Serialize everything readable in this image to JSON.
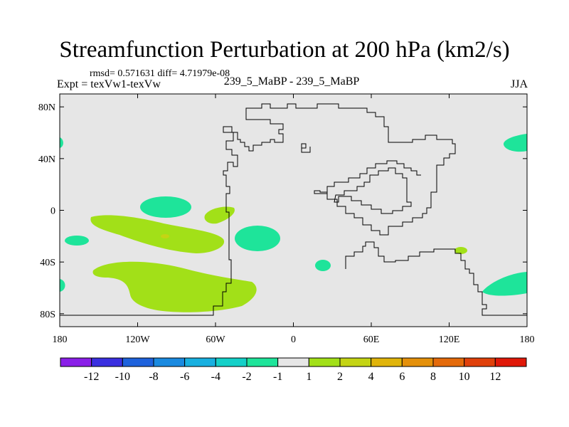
{
  "title": "Streamfunction Perturbation at 200 hPa (km2/s)",
  "stats": "rmsd= 0.571631 diff= 4.71979e-08",
  "experiment": "Expt = texVw1-texVw",
  "case": "239_5_MaBP - 239_5_MaBP",
  "season": "JJA",
  "map": {
    "background_color": "#e6e6e6",
    "outline_color": "#000000",
    "x_ticks": [
      "180",
      "120W",
      "60W",
      "0",
      "60E",
      "120E",
      "180"
    ],
    "y_ticks": [
      "80N",
      "40N",
      "0",
      "40S",
      "80S"
    ],
    "lon_range": [
      -180,
      180
    ],
    "lat_range": [
      -90,
      90
    ]
  },
  "colorbar": {
    "colors": [
      "#8a1fe8",
      "#3a2fe0",
      "#1e62dc",
      "#1a8ae0",
      "#18b0e0",
      "#14d0c8",
      "#1ee49a",
      "#e6e6e6",
      "#a2e018",
      "#c4d414",
      "#e0b40a",
      "#e4900a",
      "#e46a0a",
      "#e0400a",
      "#e01808"
    ],
    "labels": [
      "-12",
      "-10",
      "-8",
      "-6",
      "-4",
      "-2",
      "-1",
      "1",
      "2",
      "4",
      "6",
      "8",
      "10",
      "12"
    ]
  },
  "anomaly_colors": {
    "positive_2": "#a2e018",
    "positive_4": "#c4d414",
    "negative_1": "#1ee49a"
  }
}
